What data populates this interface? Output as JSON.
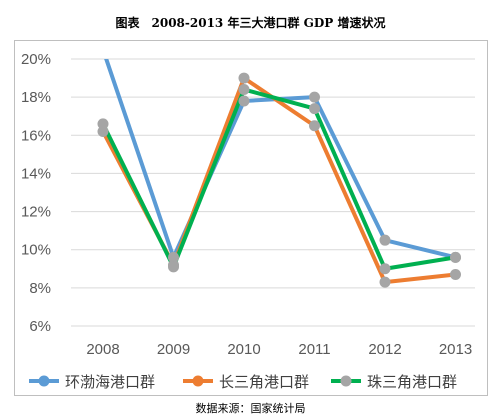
{
  "title": "图表　2008-2013 年三大港口群 GDP 增速状况",
  "source": "数据来源：国家统计局",
  "chart_data": {
    "type": "line",
    "categories": [
      "2008",
      "2009",
      "2010",
      "2011",
      "2012",
      "2013"
    ],
    "y_ticks": [
      "6%",
      "8%",
      "10%",
      "12%",
      "14%",
      "16%",
      "18%",
      "20%"
    ],
    "ylim": [
      6,
      20
    ],
    "unit": "%",
    "grid": true,
    "legend_position": "bottom",
    "series": [
      {
        "name": "环渤海港口群",
        "color": "#5b9bd5",
        "values": [
          20.5,
          9.6,
          17.8,
          18.0,
          10.5,
          9.6
        ]
      },
      {
        "name": "长三角港口群",
        "color": "#ed7d31",
        "values": [
          16.2,
          9.2,
          19.0,
          16.5,
          8.3,
          8.7
        ]
      },
      {
        "name": "珠三角港口群",
        "color": "#00b050",
        "values": [
          16.6,
          9.1,
          18.4,
          17.4,
          9.0,
          9.6
        ]
      }
    ],
    "marker_color": "#a5a5a5"
  }
}
